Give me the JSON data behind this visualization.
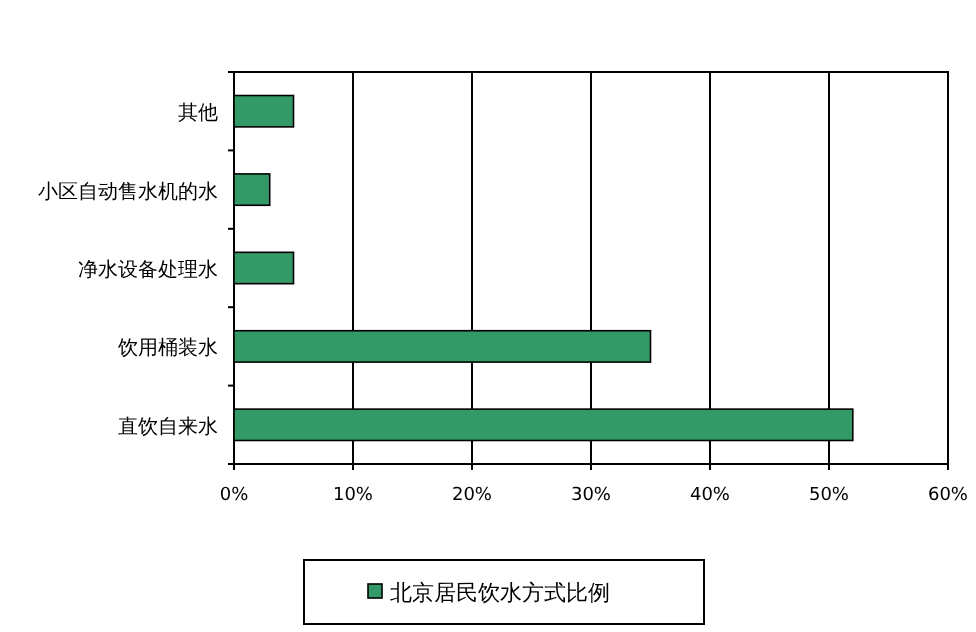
{
  "chart_data": {
    "type": "bar",
    "orientation": "horizontal",
    "categories": [
      "其他",
      "小区自动售水机的水",
      "净水设备处理水",
      "饮用桶装水",
      "直饮自来水"
    ],
    "series": [
      {
        "name": "北京居民饮水方式比例",
        "color": "#339966",
        "values": [
          5,
          3,
          5,
          35,
          52
        ]
      }
    ],
    "xlim": [
      0,
      60
    ],
    "xticks": [
      {
        "value": 0,
        "label": "0%"
      },
      {
        "value": 10,
        "label": "10%"
      },
      {
        "value": 20,
        "label": "20%"
      },
      {
        "value": 30,
        "label": "30%"
      },
      {
        "value": 40,
        "label": "40%"
      },
      {
        "value": 50,
        "label": "50%"
      },
      {
        "value": 60,
        "label": "60%"
      }
    ],
    "grid": "x",
    "legend": "bottom"
  }
}
